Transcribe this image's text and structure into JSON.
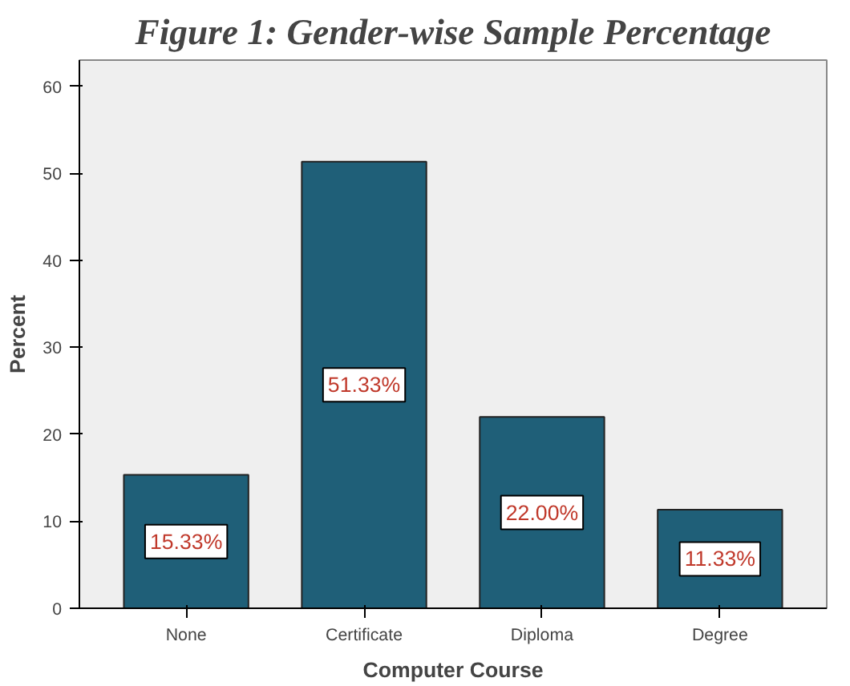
{
  "chart_data": {
    "type": "bar",
    "title": "Figure 1: Gender-wise Sample Percentage",
    "xlabel": "Computer Course",
    "ylabel": "Percent",
    "categories": [
      "None",
      "Certificate",
      "Diploma",
      "Degree"
    ],
    "values": [
      15.33,
      51.33,
      22.0,
      11.33
    ],
    "value_labels": [
      "15.33%",
      "51.33%",
      "22.00%",
      "11.33%"
    ],
    "color": "#1f5f78",
    "ylim": [
      0,
      63
    ],
    "yticks": [
      0,
      10,
      20,
      30,
      40,
      50,
      60
    ],
    "grid": false
  }
}
